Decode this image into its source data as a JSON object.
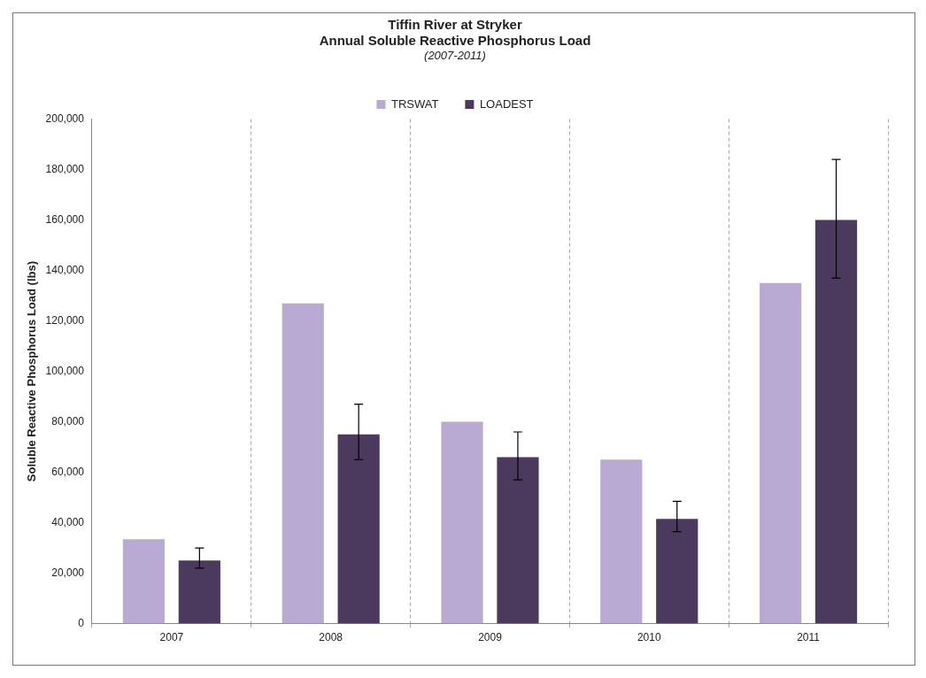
{
  "chart_data": {
    "type": "bar",
    "title": "Tiffin River at Stryker\nAnnual Soluble Reactive Phosphorus Load",
    "subtitle": "(2007-2011)",
    "ylabel": "Soluble Reactive Phosphorus Load (lbs)",
    "categories": [
      "2007",
      "2008",
      "2009",
      "2010",
      "2011"
    ],
    "series": [
      {
        "name": "TRSWAT",
        "color": "#b9aad4",
        "values": [
          33500,
          127000,
          80000,
          65000,
          135000
        ]
      },
      {
        "name": "LOADEST",
        "color": "#4b3a5e",
        "values": [
          25000,
          75000,
          66000,
          41500,
          160000
        ],
        "errors": [
          [
            22000,
            30000
          ],
          [
            65000,
            87000
          ],
          [
            57000,
            76000
          ],
          [
            36500,
            48500
          ],
          [
            137000,
            184000
          ]
        ]
      }
    ],
    "ylim": [
      0,
      200000
    ],
    "yticks": [
      0,
      {
        "value": 20000,
        "label": "20,000"
      },
      {
        "value": 40000,
        "label": "40,000"
      },
      {
        "value": 60000,
        "label": "60,000"
      },
      {
        "value": 80000,
        "label": "80,000"
      },
      {
        "value": 100000,
        "label": "100,000"
      },
      {
        "value": 120000,
        "label": "120,000"
      },
      {
        "value": 140000,
        "label": "140,000"
      },
      {
        "value": 160000,
        "label": "160,000"
      },
      {
        "value": 180000,
        "label": "180,000"
      },
      {
        "value": 200000,
        "label": "200,000"
      }
    ],
    "grid": "x",
    "legend": "top"
  }
}
